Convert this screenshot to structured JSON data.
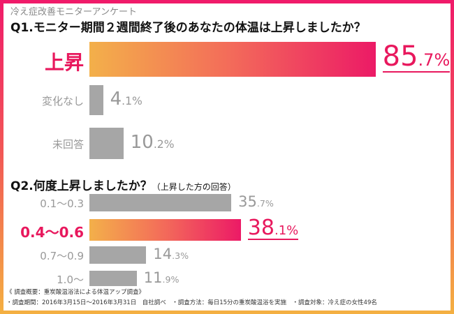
{
  "survey_title": "冷え症改善モニターアンケート",
  "colors": {
    "highlight": "#e8185d",
    "bar_gray": "#a6a6a6",
    "gradient_start": "#f3b04a",
    "gradient_end": "#ec1a66"
  },
  "chart_data": [
    {
      "type": "bar",
      "orientation": "horizontal",
      "title": "Q1.モニター期間２週間終了後のあなたの体温は上昇しましたか？",
      "categories": [
        "上昇",
        "変化なし",
        "未回答"
      ],
      "values": [
        85.7,
        4.1,
        10.2
      ],
      "labels": [
        "85.7%",
        "4.1%",
        "10.2%"
      ],
      "highlight": "上昇",
      "unit": "%"
    },
    {
      "type": "bar",
      "orientation": "horizontal",
      "title": "Q2.何度上昇しましたか？",
      "subtitle": "（上昇した方の回答）",
      "categories": [
        "0.1～0.3",
        "0.4～0.6",
        "0.7～0.9",
        "1.0～"
      ],
      "values": [
        35.7,
        38.1,
        14.3,
        11.9
      ],
      "labels": [
        "35.7%",
        "38.1%",
        "14.3%",
        "11.9%"
      ],
      "highlight": "0.4～0.6",
      "unit": "%"
    }
  ],
  "footer": {
    "line1": "《 調査概要：重炭酸温浴法による体温アップ調査》",
    "line2": "・調査期間：2016年3月15日～2016年3月31日　自社調べ　・調査方法：毎日15分の重炭酸温浴を実施　・調査対象：冷え症の女性49名"
  }
}
